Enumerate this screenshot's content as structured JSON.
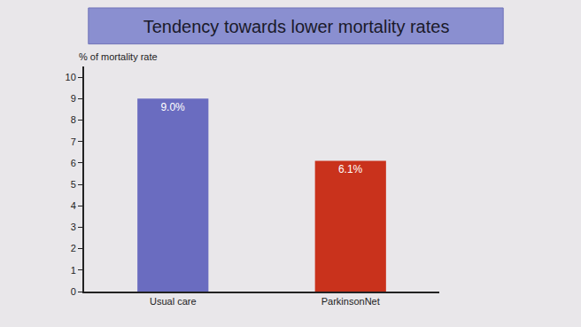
{
  "chart_data": {
    "type": "bar",
    "title": "Tendency towards lower mortality rates",
    "ylabel": "% of mortality rate",
    "categories": [
      "Usual care",
      "ParkinsonNet"
    ],
    "values": [
      9.0,
      6.1
    ],
    "value_labels": [
      "9.0%",
      "6.1%"
    ],
    "colors": [
      "#6a6cc0",
      "#c9321c"
    ],
    "data_labels": true,
    "ylim": [
      0,
      10.5
    ],
    "yticks": [
      0,
      1,
      2,
      3,
      4,
      5,
      6,
      7,
      8,
      9,
      10
    ],
    "grid": false
  }
}
